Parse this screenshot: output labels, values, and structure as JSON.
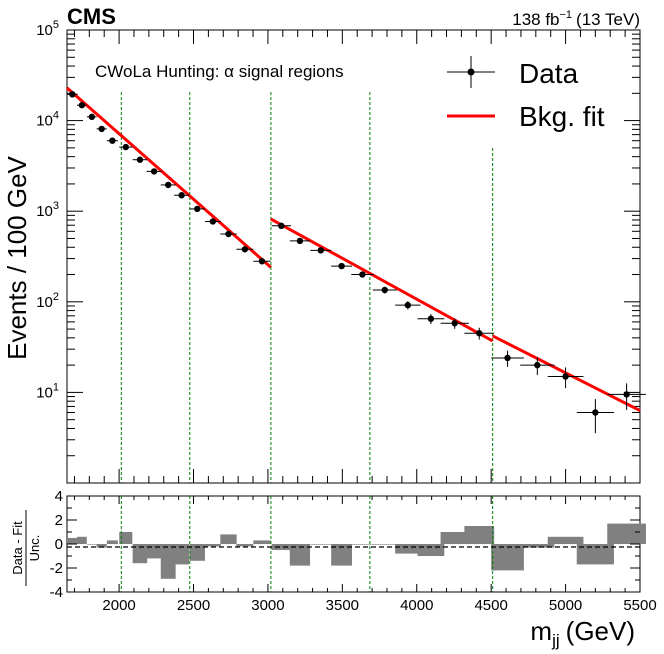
{
  "header": {
    "experiment": "CMS",
    "lumi_value": "138 fb",
    "lumi_exp": "−1",
    "lumi_energy": "(13 TeV)"
  },
  "chart_data": {
    "type": "scatter",
    "title": "CWoLa Hunting: α signal regions",
    "xlabel": "m",
    "xlabel_sub": "jj",
    "xlabel_unit": "(GeV)",
    "ylabel": "Events / 100 GeV",
    "ratio_ylabel_top": "Data - Fit",
    "ratio_ylabel_bottom": "Unc.",
    "xlim": [
      1650,
      5500
    ],
    "ylim_log": [
      1,
      100000
    ],
    "ratio_ylim": [
      -4,
      4
    ],
    "x_ticks": [
      2000,
      2500,
      3000,
      3500,
      4000,
      4500,
      5000,
      5500
    ],
    "y_ticks_exp": [
      1,
      2,
      3,
      4,
      5
    ],
    "ratio_ticks": [
      -4,
      -2,
      0,
      2,
      4
    ],
    "legend": {
      "position": "top-right",
      "entries": [
        {
          "label": "Data",
          "kind": "marker"
        },
        {
          "label": "Bkg. fit",
          "kind": "line",
          "color": "#ff0000"
        }
      ]
    },
    "signal_region_boundaries": [
      2015,
      2475,
      3020,
      3685,
      4510
    ],
    "colors": {
      "data": "#000000",
      "fit": "#ff0000",
      "boundary": "#008000",
      "pull": "#808080"
    },
    "data": [
      {
        "x": 1686,
        "hw": 36,
        "y": 19500,
        "pull": 0.5
      },
      {
        "x": 1750,
        "hw": 33,
        "y": 14800,
        "pull": 0.6
      },
      {
        "x": 1817,
        "hw": 33,
        "y": 11000,
        "pull": 0.0
      },
      {
        "x": 1883,
        "hw": 34,
        "y": 8100,
        "pull": -0.3
      },
      {
        "x": 1955,
        "hw": 37,
        "y": 6000,
        "pull": 0.3
      },
      {
        "x": 2045,
        "hw": 44,
        "y": 5100,
        "pull": 1.0
      },
      {
        "x": 2140,
        "hw": 49,
        "y": 3700,
        "pull": -1.6
      },
      {
        "x": 2235,
        "hw": 50,
        "y": 2750,
        "pull": -1.2
      },
      {
        "x": 2330,
        "hw": 50,
        "y": 1950,
        "pull": -2.9
      },
      {
        "x": 2420,
        "hw": 50,
        "y": 1500,
        "pull": -1.7
      },
      {
        "x": 2525,
        "hw": 52,
        "y": 1060,
        "pull": -1.4
      },
      {
        "x": 2630,
        "hw": 53,
        "y": 770,
        "pull": -0.2
      },
      {
        "x": 2735,
        "hw": 55,
        "y": 560,
        "pull": 0.8
      },
      {
        "x": 2845,
        "hw": 57,
        "y": 380,
        "pull": -0.2
      },
      {
        "x": 2960,
        "hw": 58,
        "y": 280,
        "pull": 0.3
      },
      {
        "x": 3090,
        "hw": 65,
        "y": 690,
        "pull": -0.5
      },
      {
        "x": 3215,
        "hw": 68,
        "y": 470,
        "pull": -1.8
      },
      {
        "x": 3355,
        "hw": 70,
        "y": 370,
        "pull": 0.0
      },
      {
        "x": 3495,
        "hw": 70,
        "y": 248,
        "pull": -1.8
      },
      {
        "x": 3635,
        "hw": 75,
        "y": 200,
        "pull": 0.0
      },
      {
        "x": 3785,
        "hw": 80,
        "y": 135,
        "pull": 0.0
      },
      {
        "x": 3940,
        "hw": 85,
        "y": 92,
        "pull": -0.8
      },
      {
        "x": 4095,
        "hw": 90,
        "y": 65,
        "pull": -1.0
      },
      {
        "x": 4255,
        "hw": 95,
        "y": 58,
        "pull": 1.0
      },
      {
        "x": 4420,
        "hw": 100,
        "y": 45,
        "pull": 1.5
      },
      {
        "x": 4610,
        "hw": 110,
        "y": 24,
        "pull": -2.2
      },
      {
        "x": 4810,
        "hw": 115,
        "y": 20,
        "pull": -0.3
      },
      {
        "x": 5000,
        "hw": 120,
        "y": 15,
        "pull": 0.6
      },
      {
        "x": 5200,
        "hw": 125,
        "y": 6,
        "pull": -1.7
      },
      {
        "x": 5410,
        "hw": 130,
        "y": 9.5,
        "pull": 1.7
      }
    ],
    "fit_segments": [
      {
        "x": [
          1650,
          3020
        ],
        "y": [
          23000,
          240
        ]
      },
      {
        "x": [
          3020,
          4510
        ],
        "y": [
          820,
          37
        ]
      },
      {
        "x": [
          4510,
          5500
        ],
        "y": [
          42,
          6.3
        ]
      }
    ]
  }
}
